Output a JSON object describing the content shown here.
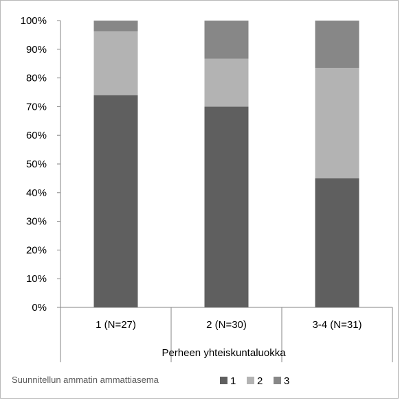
{
  "chart_data": {
    "type": "bar",
    "stacked": true,
    "percent": true,
    "categories": [
      "1 (N=27)",
      "2 (N=30)",
      "3-4 (N=31)"
    ],
    "series": [
      {
        "name": "1",
        "values": [
          74,
          70,
          45
        ],
        "color": "#5f5f5f"
      },
      {
        "name": "2",
        "values": [
          22.3,
          16.7,
          38.5
        ],
        "color": "#b3b3b3"
      },
      {
        "name": "3",
        "values": [
          3.7,
          13.3,
          16.5
        ],
        "color": "#878787"
      }
    ],
    "title": "",
    "xlabel": "Perheen yhteiskuntaluokka",
    "ylabel": "",
    "ylim": [
      0,
      100
    ],
    "yticks": [
      "0%",
      "10%",
      "20%",
      "30%",
      "40%",
      "50%",
      "60%",
      "70%",
      "80%",
      "90%",
      "100%"
    ],
    "grid": false,
    "legend": {
      "position": "bottom-left",
      "title": "Suunnitellun ammatin ammattiasema"
    }
  }
}
